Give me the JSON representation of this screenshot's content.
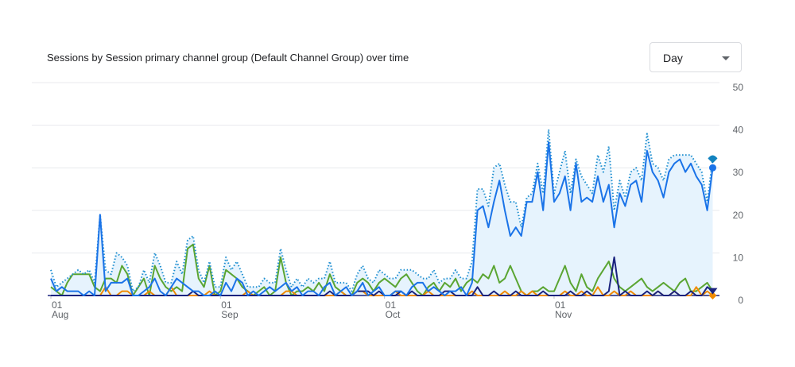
{
  "chart_data": {
    "type": "line",
    "title": "Sessions by Session primary channel group (Default Channel Group) over time",
    "x_range": [
      "Aug 01",
      "Nov 30"
    ],
    "x_ticks": [
      {
        "day": "01",
        "month": "Aug"
      },
      {
        "day": "01",
        "month": "Sep"
      },
      {
        "day": "01",
        "month": "Oct"
      },
      {
        "day": "01",
        "month": "Nov"
      }
    ],
    "y_ticks": [
      "0",
      "10",
      "20",
      "30",
      "40",
      "50"
    ],
    "ylim": [
      0,
      50
    ],
    "grid": true,
    "y_axis_side": "right",
    "series": [
      {
        "color": "#1e8fd0",
        "style": "dotted",
        "fill": "#e6f3fd",
        "end_marker": "teardrop",
        "values": [
          6,
          2,
          3,
          4,
          5,
          6,
          5,
          6,
          3,
          19,
          6,
          5,
          10,
          9,
          7,
          1,
          2,
          6,
          3,
          10,
          7,
          3,
          3,
          8,
          5,
          13,
          14,
          6,
          3,
          8,
          2,
          2,
          9,
          6,
          8,
          5,
          2,
          2,
          2,
          4,
          3,
          3,
          11,
          6,
          2,
          4,
          2,
          4,
          3,
          4,
          4,
          8,
          3,
          3,
          3,
          1,
          5,
          7,
          4,
          3,
          6,
          5,
          4,
          4,
          6,
          6,
          6,
          5,
          4,
          4,
          6,
          3,
          4,
          4,
          6,
          4,
          4,
          8,
          25,
          25,
          21,
          30,
          31,
          26,
          22,
          22,
          16,
          23,
          24,
          31,
          24,
          39,
          24,
          29,
          34,
          24,
          32,
          28,
          26,
          24,
          33,
          29,
          35,
          20,
          27,
          23,
          29,
          30,
          27,
          38,
          31,
          30,
          27,
          32,
          33,
          33,
          33,
          33,
          31,
          29,
          22,
          32
        ]
      },
      {
        "color": "#1a73e8",
        "style": "solid",
        "end_marker": "circle",
        "values": [
          4,
          1,
          2,
          1,
          1,
          1,
          0,
          1,
          0,
          19,
          1,
          3,
          3,
          3,
          4,
          0,
          0,
          1,
          2,
          4,
          1,
          0,
          2,
          4,
          3,
          2,
          1,
          1,
          0,
          0,
          1,
          0,
          3,
          1,
          4,
          3,
          0,
          1,
          0,
          1,
          2,
          1,
          2,
          3,
          1,
          2,
          0,
          1,
          1,
          0,
          2,
          3,
          0,
          1,
          2,
          0,
          1,
          3,
          0,
          1,
          2,
          0,
          0,
          1,
          1,
          0,
          2,
          3,
          3,
          1,
          2,
          1,
          0,
          1,
          1,
          2,
          0,
          3,
          20,
          21,
          16,
          22,
          27,
          20,
          14,
          16,
          14,
          22,
          22,
          29,
          20,
          36,
          22,
          24,
          28,
          20,
          31,
          22,
          23,
          22,
          28,
          22,
          26,
          16,
          24,
          21,
          26,
          27,
          22,
          34,
          29,
          27,
          23,
          29,
          31,
          32,
          29,
          31,
          28,
          26,
          20,
          30
        ]
      },
      {
        "color": "#5aa532",
        "style": "solid",
        "end_marker": "none",
        "values": [
          2,
          1,
          0,
          3,
          5,
          5,
          5,
          5,
          2,
          1,
          4,
          4,
          3,
          7,
          5,
          0,
          2,
          4,
          0,
          7,
          4,
          2,
          1,
          2,
          1,
          11,
          12,
          4,
          2,
          7,
          0,
          1,
          6,
          5,
          4,
          2,
          1,
          0,
          1,
          2,
          0,
          1,
          9,
          3,
          0,
          1,
          1,
          2,
          1,
          3,
          1,
          5,
          2,
          1,
          0,
          0,
          3,
          4,
          3,
          1,
          3,
          4,
          3,
          2,
          4,
          5,
          3,
          1,
          0,
          2,
          3,
          1,
          3,
          2,
          4,
          1,
          3,
          4,
          3,
          5,
          4,
          7,
          3,
          4,
          7,
          4,
          1,
          0,
          1,
          1,
          2,
          1,
          1,
          4,
          7,
          3,
          1,
          5,
          2,
          1,
          4,
          6,
          8,
          4,
          2,
          1,
          2,
          3,
          4,
          2,
          1,
          2,
          3,
          2,
          1,
          3,
          4,
          1,
          1,
          2,
          3,
          1
        ]
      },
      {
        "color": "#f08a00",
        "style": "solid",
        "end_marker": "diamond",
        "values": [
          0,
          0,
          0,
          0,
          0,
          0,
          0,
          0,
          0,
          0,
          2,
          0,
          0,
          1,
          1,
          0,
          0,
          0,
          1,
          0,
          0,
          0,
          2,
          0,
          0,
          0,
          0,
          0,
          0,
          1,
          0,
          0,
          0,
          0,
          0,
          0,
          1,
          0,
          0,
          0,
          0,
          0,
          0,
          1,
          1,
          0,
          0,
          0,
          0,
          0,
          0,
          0,
          0,
          1,
          0,
          0,
          1,
          1,
          0,
          0,
          0,
          0,
          0,
          1,
          0,
          0,
          0,
          0,
          0,
          1,
          0,
          0,
          0,
          0,
          0,
          0,
          0,
          1,
          0,
          0,
          0,
          0,
          0,
          1,
          0,
          0,
          1,
          0,
          1,
          0,
          0,
          0,
          0,
          0,
          1,
          0,
          0,
          1,
          0,
          0,
          2,
          0,
          0,
          1,
          0,
          0,
          1,
          0,
          0,
          0,
          0,
          1,
          0,
          0,
          1,
          0,
          0,
          0,
          2,
          0,
          1,
          0
        ]
      },
      {
        "color": "#1a237e",
        "style": "solid",
        "end_marker": "triangle",
        "values": [
          0,
          0,
          0,
          0,
          0,
          0,
          0,
          0,
          0,
          0,
          0,
          0,
          0,
          0,
          0,
          0,
          0,
          0,
          0,
          0,
          0,
          0,
          0,
          0,
          0,
          0,
          1,
          0,
          0,
          0,
          0,
          0,
          0,
          0,
          0,
          0,
          0,
          0,
          0,
          0,
          0,
          0,
          0,
          0,
          0,
          0,
          0,
          0,
          0,
          0,
          0,
          1,
          0,
          0,
          0,
          0,
          1,
          1,
          1,
          0,
          1,
          0,
          0,
          0,
          1,
          0,
          1,
          0,
          0,
          0,
          0,
          0,
          1,
          1,
          0,
          0,
          0,
          0,
          2,
          0,
          0,
          1,
          0,
          0,
          0,
          1,
          0,
          0,
          0,
          0,
          1,
          0,
          0,
          0,
          0,
          1,
          0,
          0,
          1,
          0,
          0,
          0,
          1,
          9,
          0,
          1,
          0,
          0,
          0,
          1,
          0,
          1,
          0,
          0,
          1,
          0,
          0,
          1,
          0,
          0,
          2,
          1
        ]
      }
    ]
  },
  "controls": {
    "granularity": "Day"
  }
}
